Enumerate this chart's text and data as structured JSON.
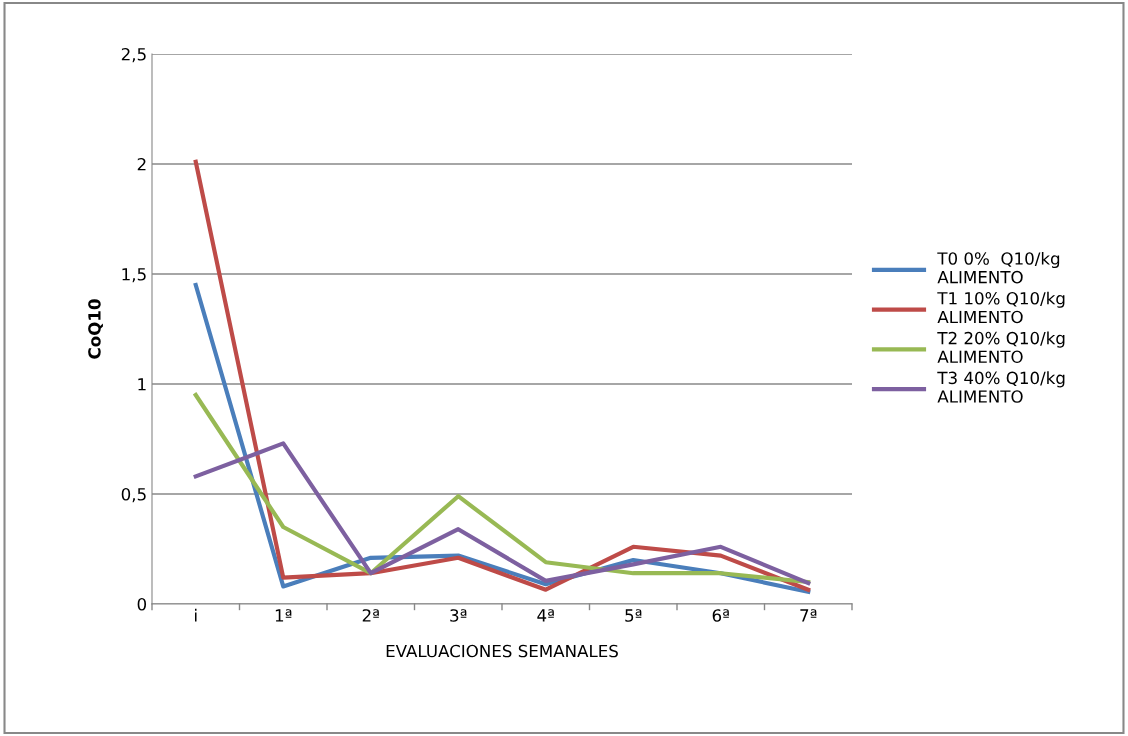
{
  "chart_data": {
    "type": "line",
    "xlabel": "EVALUACIONES SEMANALES",
    "ylabel": "CoQ10",
    "categories": [
      "i",
      "1ª",
      "2ª",
      "3ª",
      "4ª",
      "5ª",
      "6ª",
      "7ª"
    ],
    "series": [
      {
        "name": "T0 0%  Q10/kg ALIMENTO",
        "color": "#4a7ebb",
        "values": [
          1.45,
          0.08,
          0.21,
          0.22,
          0.09,
          0.2,
          0.14,
          0.055
        ]
      },
      {
        "name": "T1 10% Q10/kg ALIMENTO",
        "color": "#be4b48",
        "values": [
          2.01,
          0.12,
          0.14,
          0.21,
          0.065,
          0.26,
          0.22,
          0.065
        ]
      },
      {
        "name": "T2 20% Q10/kg ALIMENTO",
        "color": "#98b954",
        "values": [
          0.95,
          0.35,
          0.14,
          0.49,
          0.19,
          0.14,
          0.14,
          0.1
        ]
      },
      {
        "name": "T3 40% Q10/kg ALIMENTO",
        "color": "#7d60a0",
        "values": [
          0.58,
          0.73,
          0.14,
          0.34,
          0.105,
          0.18,
          0.26,
          0.095
        ]
      }
    ],
    "ylim": [
      0,
      2.5
    ],
    "yticks": [
      {
        "value": 0,
        "label": "0"
      },
      {
        "value": 0.5,
        "label": "0,5"
      },
      {
        "value": 1,
        "label": "1"
      },
      {
        "value": 1.5,
        "label": "1,5"
      },
      {
        "value": 2,
        "label": "2"
      },
      {
        "value": 2.5,
        "label": "2,5"
      }
    ],
    "grid": "y",
    "legend": "right",
    "marker": "none",
    "line_style": "solid"
  }
}
